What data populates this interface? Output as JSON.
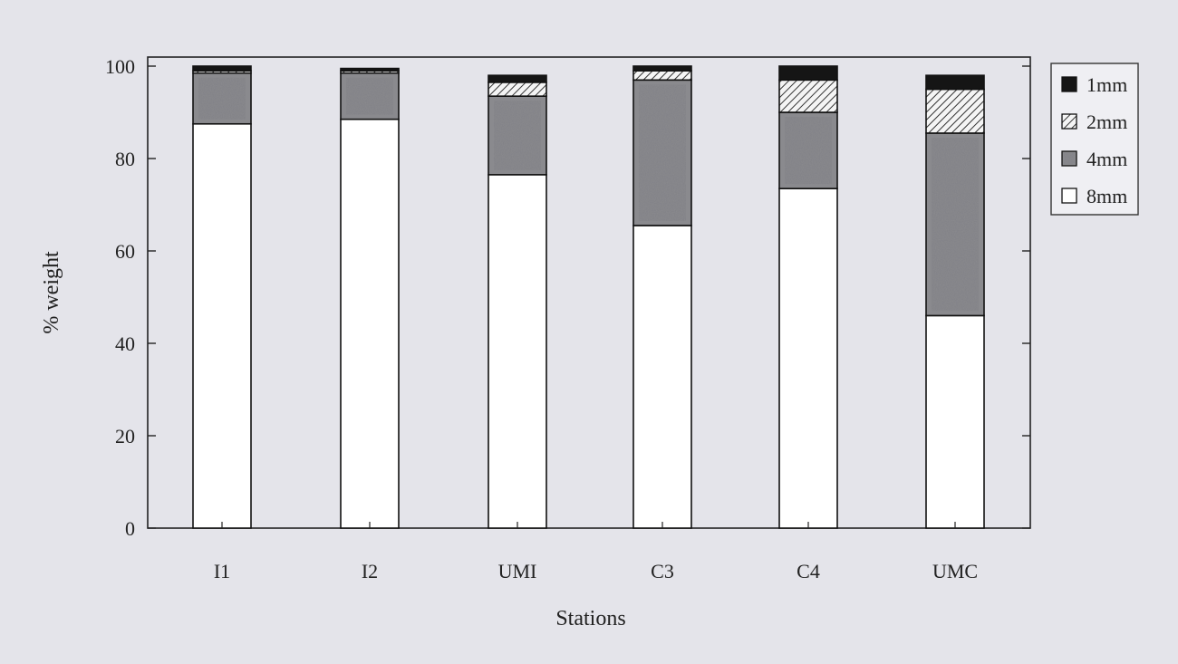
{
  "chart_data": {
    "type": "bar",
    "stacked": true,
    "title": "",
    "xlabel": "Stations",
    "ylabel": "% weight",
    "ylim": [
      0,
      100
    ],
    "yticks": [
      0,
      20,
      40,
      60,
      80,
      100
    ],
    "grid": false,
    "legend_position": "right",
    "categories": [
      "I1",
      "I2",
      "UMI",
      "C3",
      "C4",
      "UMC"
    ],
    "series": [
      {
        "name": "8mm",
        "pattern": "white",
        "color": "#ffffff",
        "values": [
          87.5,
          88.5,
          76.5,
          65.5,
          73.5,
          46
        ]
      },
      {
        "name": "4mm",
        "pattern": "stipple",
        "color": "#707070",
        "values": [
          11,
          10,
          17,
          31.5,
          16.5,
          39.5
        ]
      },
      {
        "name": "2mm",
        "pattern": "hatch",
        "color": "#bbbbbb",
        "values": [
          0.5,
          0.5,
          3,
          2,
          7,
          9.5
        ]
      },
      {
        "name": "1mm",
        "pattern": "solid",
        "color": "#151515",
        "values": [
          1,
          0.5,
          1.5,
          1,
          3,
          3
        ]
      }
    ],
    "legend_order": [
      "1mm",
      "2mm",
      "4mm",
      "8mm"
    ]
  }
}
